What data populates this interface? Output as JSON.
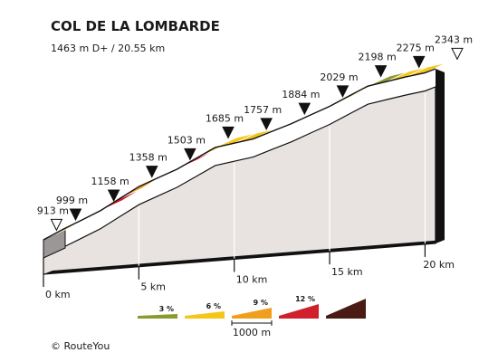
{
  "chart_data": {
    "type": "area",
    "title": "COL DE LA LOMBARDE",
    "subtitle": "1463 m D+ / 20.55 km",
    "series": [
      {
        "x": [
          0,
          1,
          2,
          3,
          4,
          5,
          6,
          7,
          8,
          9,
          10,
          11,
          12,
          13,
          14,
          15,
          16,
          17,
          18,
          19,
          20,
          20.55
        ],
        "y": [
          913,
          999,
          1078,
          1158,
          1258,
          1358,
          1431,
          1503,
          1594,
          1685,
          1721,
          1757,
          1821,
          1884,
          1957,
          2029,
          2114,
          2198,
          2237,
          2275,
          2309,
          2343
        ],
        "gradient_class": [
          "9%",
          "6%",
          "12%",
          "12%",
          "9%",
          "9%",
          "12%",
          "12%",
          "6%",
          "6%",
          "6%",
          "9%",
          "6%",
          "9%",
          "6%",
          "9%",
          "12%",
          "3%",
          "6%",
          "6%",
          "3%"
        ]
      }
    ],
    "altitude_markers": [
      {
        "km": 0,
        "label": "913 m",
        "marker": "open"
      },
      {
        "km": 1,
        "label": "999 m",
        "marker": "filled"
      },
      {
        "km": 3,
        "label": "1158 m",
        "marker": "filled"
      },
      {
        "km": 5,
        "label": "1358 m",
        "marker": "filled"
      },
      {
        "km": 7,
        "label": "1503 m",
        "marker": "filled"
      },
      {
        "km": 9,
        "label": "1685 m",
        "marker": "filled"
      },
      {
        "km": 11,
        "label": "1757 m",
        "marker": "filled"
      },
      {
        "km": 13,
        "label": "1884 m",
        "marker": "filled"
      },
      {
        "km": 15,
        "label": "2029 m",
        "marker": "filled"
      },
      {
        "km": 17,
        "label": "2198 m",
        "marker": "filled"
      },
      {
        "km": 19,
        "label": "2275 m",
        "marker": "filled"
      },
      {
        "km": 20.55,
        "label": "2343 m",
        "marker": "open"
      }
    ],
    "km_ticks": [
      {
        "km": 0,
        "label": "0 km"
      },
      {
        "km": 5,
        "label": "5 km"
      },
      {
        "km": 10,
        "label": "10 km"
      },
      {
        "km": 15,
        "label": "15 km"
      },
      {
        "km": 20,
        "label": "20 km"
      }
    ],
    "xlim": [
      0,
      20.55
    ],
    "ylim": [
      913,
      2343
    ],
    "legend": {
      "items": [
        {
          "label": "3 %",
          "color": "#8a9a2b"
        },
        {
          "label": "6 %",
          "color": "#f5c518"
        },
        {
          "label": "9 %",
          "color": "#ef9f1c"
        },
        {
          "label": "12 %",
          "color": "#d0202b"
        },
        {
          "label": "",
          "color": "#4a1a14"
        }
      ],
      "scale_label": "1000 m"
    },
    "colors": {
      "3%": "#8a9a2b",
      "6%": "#f5c518",
      "9%": "#ef9f1c",
      "12%": "#d0202b",
      "face": "#e8e3e1",
      "side": "#9b9797",
      "outline": "#111111"
    }
  },
  "credit": "© RouteYou"
}
